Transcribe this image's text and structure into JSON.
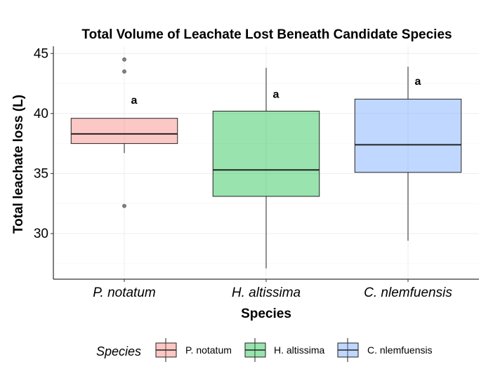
{
  "chart_data": {
    "type": "boxplot",
    "title": "Total Volume of Leachate Lost Beneath Candidate Species",
    "xlabel": "Species",
    "ylabel": "Total leachate loss (L)",
    "ylim": [
      26.2,
      45.6
    ],
    "yticks": [
      30,
      35,
      40,
      45
    ],
    "grid": true,
    "legend": {
      "title": "Species",
      "position": "bottom"
    },
    "categories": [
      "P. notatum",
      "H. altissima",
      "C. nlemfuensis"
    ],
    "series": [
      {
        "name": "P. notatum",
        "label_legend": "P. notatum",
        "color": "#F8766D",
        "whisker_low": 36.7,
        "q1": 37.5,
        "median": 38.3,
        "q3": 39.6,
        "whisker_high": 39.6,
        "outliers": [
          44.5,
          43.5,
          32.3
        ],
        "sig_label": "a",
        "sig_y": 40.8
      },
      {
        "name": "H. altissima",
        "label_legend": "H. altissima",
        "color": "#00BA38",
        "whisker_low": 27.1,
        "q1": 33.1,
        "median": 35.3,
        "q3": 40.2,
        "whisker_high": 43.8,
        "outliers": [],
        "sig_label": "a",
        "sig_y": 41.3
      },
      {
        "name": "C. nlemfuensis",
        "label_legend": "C. nlemfuensis",
        "color": "#619CFF",
        "whisker_low": 29.4,
        "q1": 35.1,
        "median": 37.4,
        "q3": 41.2,
        "whisker_high": 43.9,
        "outliers": [],
        "sig_label": "a",
        "sig_y": 42.4
      }
    ]
  }
}
